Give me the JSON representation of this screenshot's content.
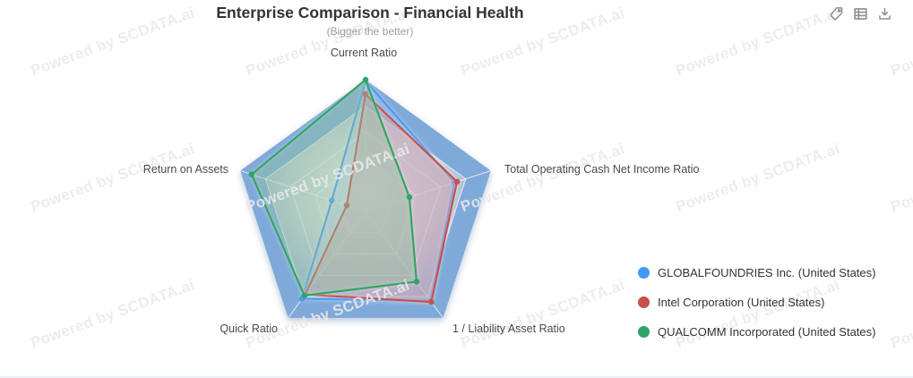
{
  "header": {
    "title": "Enterprise Comparison - Financial Health",
    "subtitle": "(Bigger the better)"
  },
  "toolbar": {
    "icons": [
      "tag-icon",
      "data-table-icon",
      "download-icon"
    ]
  },
  "watermark": {
    "text": "Powered by SCDATA.ai"
  },
  "chart_data": {
    "type": "radar",
    "title": "Enterprise Comparison - Financial Health",
    "subtitle": "(Bigger the better)",
    "axes": [
      "Current Ratio",
      "Total Operating Cash Net Income Ratio",
      "1 / Liability Asset Ratio",
      "Quick Ratio",
      "Return on Assets"
    ],
    "levels": 5,
    "axis_max": 1.0,
    "value_scale": "normalized 0-1 radial fraction (no numeric tick labels shown; values estimated from pixels)",
    "legend_position": "right",
    "series": [
      {
        "name": "GLOBALFOUNDRIES Inc. (United States)",
        "color": "#4499F4",
        "fill": "rgba(68,153,244,0.22)",
        "values": [
          0.99,
          0.71,
          0.84,
          0.82,
          0.27
        ]
      },
      {
        "name": "Intel Corporation (United States)",
        "color": "#C9504C",
        "fill": "rgba(201,80,76,0.30)",
        "values": [
          0.89,
          0.73,
          0.85,
          0.78,
          0.15
        ]
      },
      {
        "name": "QUALCOMM Incorporated (United States)",
        "color": "#2EA663",
        "fill": "rgba(46,166,99,0.32)",
        "values": [
          1.0,
          0.35,
          0.66,
          0.79,
          0.91
        ]
      }
    ],
    "style": {
      "outer_band": "#7FA9D9",
      "grid_line": "rgba(255,255,255,0.75)",
      "bg_gradient": [
        "#F3F4F2",
        "#CBD4DA",
        "#93AFD4"
      ]
    }
  }
}
